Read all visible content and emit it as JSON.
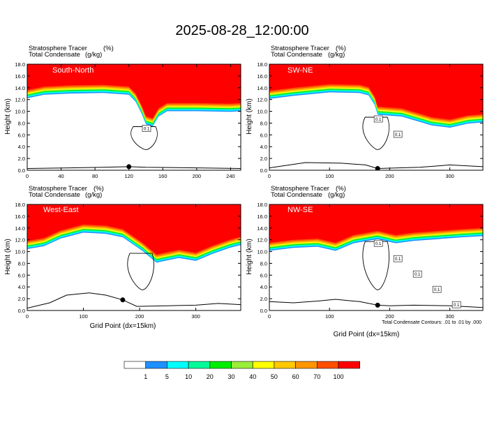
{
  "title": "2025-08-28_12:00:00",
  "footnote": "Total Condensate Contours: .01 to .01 by .000",
  "colorbar": {
    "labels": [
      "1",
      "5",
      "10",
      "20",
      "30",
      "40",
      "50",
      "60",
      "70",
      "100"
    ],
    "colors": [
      "#ffffff",
      "#1e90ff",
      "#00ffff",
      "#00fa9a",
      "#00ee00",
      "#9aee3a",
      "#ffff00",
      "#ffc800",
      "#ff9600",
      "#ff4f00",
      "#ff0000"
    ]
  },
  "chart_data": [
    {
      "type": "heatmap",
      "panel_label": "South-North",
      "var1": "Stratosphere Tracer",
      "unit1": "(%)",
      "var2": "Total Condensate",
      "unit2": "(g/kg)",
      "ylabel": "Height (km)",
      "xlabel": "",
      "xlim": [
        0,
        252
      ],
      "ylim": [
        0,
        18
      ],
      "xticks": [
        "0",
        "40",
        "80",
        "120",
        "160",
        "200",
        "240"
      ],
      "yticks": [
        "0.0",
        "2.0",
        "4.0",
        "6.0",
        "8.0",
        "10.0",
        "12.0",
        "14.0",
        "16.0",
        "18.0"
      ],
      "box_labels": [
        "0.1"
      ],
      "tropopause_height_km": [
        [
          0,
          13.6
        ],
        [
          20,
          14.2
        ],
        [
          50,
          14.4
        ],
        [
          90,
          14.5
        ],
        [
          120,
          14.2
        ],
        [
          128,
          13.0
        ],
        [
          135,
          11.0
        ],
        [
          140,
          9.2
        ],
        [
          148,
          8.8
        ],
        [
          155,
          10.5
        ],
        [
          165,
          11.4
        ],
        [
          200,
          11.4
        ],
        [
          240,
          11.3
        ],
        [
          252,
          11.4
        ]
      ],
      "terrain_km": [
        [
          0,
          0.3
        ],
        [
          50,
          0.4
        ],
        [
          90,
          0.5
        ],
        [
          120,
          0.6
        ],
        [
          140,
          0.5
        ],
        [
          200,
          0.4
        ],
        [
          252,
          0.3
        ]
      ]
    },
    {
      "type": "heatmap",
      "panel_label": "SW-NE",
      "var1": "Stratosphere Tracer",
      "unit1": "(%)",
      "var2": "Total Condensate",
      "unit2": "(g/kg)",
      "ylabel": "Height (km)",
      "xlabel": "",
      "xlim": [
        0,
        355
      ],
      "ylim": [
        0,
        18
      ],
      "xticks": [
        "0",
        "100",
        "200",
        "300"
      ],
      "yticks": [
        "0.0",
        "2.0",
        "4.0",
        "6.0",
        "8.0",
        "10.0",
        "12.0",
        "14.0",
        "16.0",
        "18.0"
      ],
      "box_labels": [
        "0.1",
        "0.1"
      ],
      "tropopause_height_km": [
        [
          0,
          13.5
        ],
        [
          40,
          14.0
        ],
        [
          100,
          14.6
        ],
        [
          150,
          14.5
        ],
        [
          165,
          14.1
        ],
        [
          175,
          12.5
        ],
        [
          180,
          10.8
        ],
        [
          220,
          10.5
        ],
        [
          270,
          9.0
        ],
        [
          300,
          8.6
        ],
        [
          330,
          9.3
        ],
        [
          355,
          9.5
        ]
      ],
      "terrain_km": [
        [
          0,
          0.4
        ],
        [
          60,
          1.3
        ],
        [
          120,
          1.2
        ],
        [
          160,
          0.9
        ],
        [
          180,
          0.3
        ],
        [
          250,
          0.5
        ],
        [
          300,
          0.9
        ],
        [
          355,
          0.6
        ]
      ]
    },
    {
      "type": "heatmap",
      "panel_label": "West-East",
      "var1": "Stratosphere Tracer",
      "unit1": "(%)",
      "var2": "Total Condensate",
      "unit2": "(g/kg)",
      "ylabel": "Height (km)",
      "xlabel": "",
      "xlim": [
        0,
        380
      ],
      "ylim": [
        0,
        18
      ],
      "xticks": [
        "0",
        "100",
        "200",
        "300"
      ],
      "yticks": [
        "0.0",
        "2.0",
        "4.0",
        "6.0",
        "8.0",
        "10.0",
        "12.0",
        "14.0",
        "16.0",
        "18.0"
      ],
      "box_labels": [],
      "tropopause_height_km": [
        [
          0,
          11.8
        ],
        [
          30,
          12.3
        ],
        [
          60,
          13.6
        ],
        [
          100,
          14.6
        ],
        [
          140,
          14.4
        ],
        [
          170,
          13.8
        ],
        [
          205,
          11.5
        ],
        [
          230,
          9.5
        ],
        [
          270,
          10.3
        ],
        [
          300,
          9.8
        ],
        [
          330,
          11.0
        ],
        [
          360,
          12.0
        ],
        [
          380,
          12.5
        ]
      ],
      "terrain_km": [
        [
          0,
          0.4
        ],
        [
          40,
          1.3
        ],
        [
          70,
          2.6
        ],
        [
          110,
          3.0
        ],
        [
          140,
          2.6
        ],
        [
          170,
          1.8
        ],
        [
          195,
          0.7
        ],
        [
          250,
          0.8
        ],
        [
          300,
          0.9
        ],
        [
          340,
          1.2
        ],
        [
          380,
          1.0
        ]
      ]
    },
    {
      "type": "heatmap",
      "panel_label": "NW-SE",
      "var1": "Stratosphere Tracer",
      "unit1": "(%)",
      "var2": "Total Condensate",
      "unit2": "(g/kg)",
      "ylabel": "Height (km)",
      "xlabel": "Grid Point (dx=15km)",
      "xlim": [
        0,
        355
      ],
      "ylim": [
        0,
        18
      ],
      "xticks": [
        "0",
        "100",
        "200",
        "300"
      ],
      "yticks": [
        "0.0",
        "2.0",
        "4.0",
        "6.0",
        "8.0",
        "10.0",
        "12.0",
        "14.0",
        "16.0",
        "18.0"
      ],
      "box_labels": [
        "0.1",
        "0.1",
        "0.1",
        "0.1",
        "0.1"
      ],
      "tropopause_height_km": [
        [
          0,
          11.5
        ],
        [
          40,
          12.0
        ],
        [
          80,
          12.2
        ],
        [
          110,
          11.5
        ],
        [
          140,
          12.8
        ],
        [
          180,
          13.5
        ],
        [
          210,
          12.8
        ],
        [
          240,
          13.2
        ],
        [
          280,
          13.5
        ],
        [
          320,
          13.8
        ],
        [
          355,
          14.0
        ]
      ],
      "terrain_km": [
        [
          0,
          1.5
        ],
        [
          40,
          1.3
        ],
        [
          80,
          1.6
        ],
        [
          110,
          1.9
        ],
        [
          150,
          1.5
        ],
        [
          180,
          0.9
        ],
        [
          200,
          0.8
        ],
        [
          240,
          0.9
        ],
        [
          300,
          0.8
        ],
        [
          355,
          0.5
        ]
      ]
    }
  ]
}
